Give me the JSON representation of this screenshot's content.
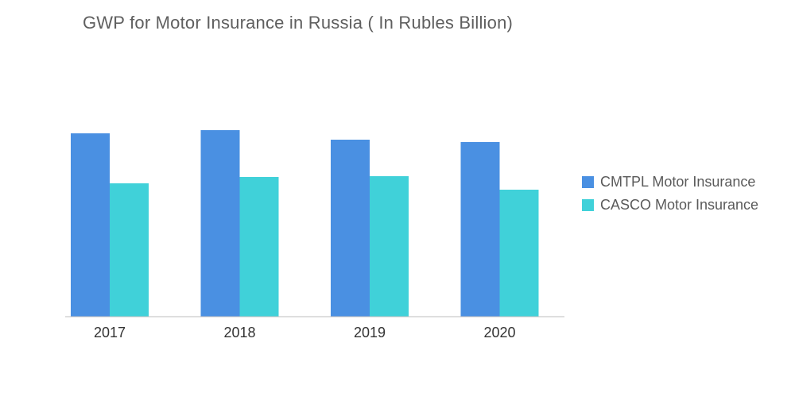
{
  "chart_data": {
    "type": "bar",
    "title": "GWP for Motor Insurance in Russia ( In Rubles Billion)",
    "xlabel": "",
    "ylabel": "",
    "categories": [
      "2017",
      "2018",
      "2019",
      "2020"
    ],
    "series": [
      {
        "name": "CMTPL Motor Insurance",
        "color": "#4a90e2",
        "values": [
          231,
          235,
          223,
          220
        ]
      },
      {
        "name": "CASCO Motor Insurance",
        "color": "#40d1d9",
        "values": [
          168,
          176,
          177,
          160
        ]
      }
    ],
    "ylim": [
      0,
      260
    ],
    "grid": false,
    "legend": "right"
  }
}
